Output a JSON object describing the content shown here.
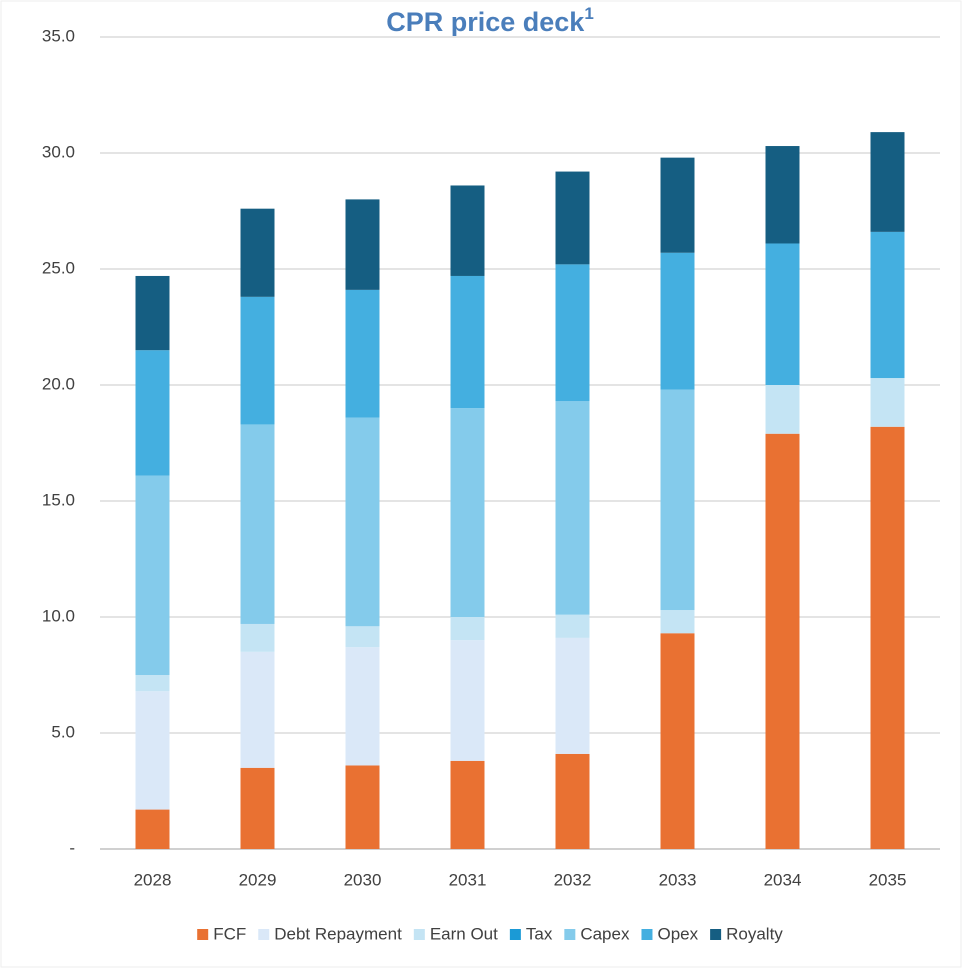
{
  "chart_data": {
    "type": "stacked_bar",
    "title": "CPR price deck",
    "title_note": "1",
    "categories": [
      "2028",
      "2029",
      "2030",
      "2031",
      "2032",
      "2033",
      "2034",
      "2035"
    ],
    "series": [
      {
        "name": "FCF",
        "color": "#e97132",
        "values": [
          1.7,
          3.5,
          3.6,
          3.8,
          4.1,
          9.3,
          17.9,
          18.2
        ]
      },
      {
        "name": "Debt Repayment",
        "color": "#dae8f8",
        "values": [
          5.1,
          5.0,
          5.1,
          5.2,
          5.0,
          0,
          0,
          0
        ]
      },
      {
        "name": "Earn Out",
        "color": "#c4e4f4",
        "values": [
          0.7,
          1.2,
          0.9,
          1.0,
          1.0,
          1.0,
          2.1,
          2.1
        ]
      },
      {
        "name": "Tax",
        "color": "#1b9ad6",
        "values": [
          0,
          0,
          0,
          0,
          0,
          0,
          0,
          0
        ]
      },
      {
        "name": "Capex",
        "color": "#84cbeb",
        "values": [
          8.6,
          8.6,
          9.0,
          9.0,
          9.2,
          9.5,
          0,
          0
        ]
      },
      {
        "name": "Opex",
        "color": "#44afe0",
        "values": [
          5.4,
          5.5,
          5.5,
          5.7,
          5.9,
          5.9,
          6.1,
          6.3
        ]
      },
      {
        "name": "Royalty",
        "color": "#155e82",
        "values": [
          3.2,
          3.8,
          3.9,
          3.9,
          4.0,
          4.1,
          4.2,
          4.3
        ]
      }
    ],
    "ylim": [
      0,
      35
    ],
    "yticks": [
      {
        "value": 0,
        "label": "-"
      },
      {
        "value": 5,
        "label": "5.0"
      },
      {
        "value": 10,
        "label": "10.0"
      },
      {
        "value": 15,
        "label": "15.0"
      },
      {
        "value": 20,
        "label": "20.0"
      },
      {
        "value": 25,
        "label": "25.0"
      },
      {
        "value": 30,
        "label": "30.0"
      },
      {
        "value": 35,
        "label": "35.0"
      }
    ],
    "grid": true,
    "legend": "bottom"
  }
}
